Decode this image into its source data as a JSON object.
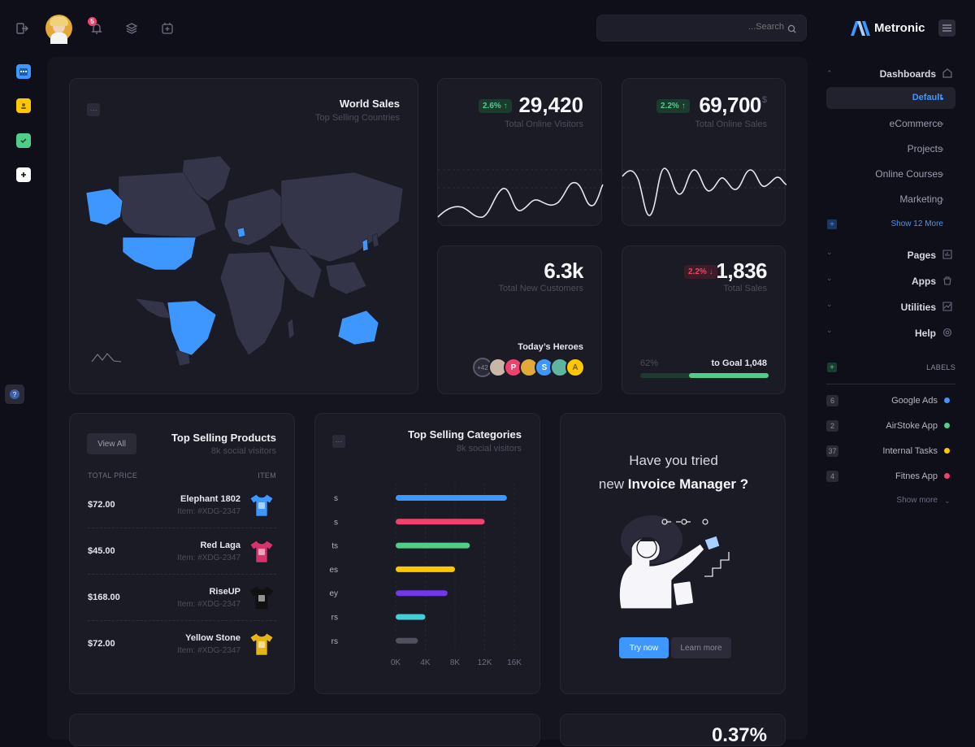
{
  "header": {
    "notification_count": "5",
    "search_placeholder": "...Search",
    "brand": "Metronic"
  },
  "world_sales": {
    "title": "World Sales",
    "subtitle": "Top Selling Countries",
    "menu_label": "···"
  },
  "stats": {
    "visitors": {
      "badge": "2.6%",
      "value": "29,420",
      "label": "Total Online Visitors"
    },
    "online_sales": {
      "badge": "2.2%",
      "value": "69,700",
      "currency": "$",
      "label": "Total Online Sales"
    },
    "customers": {
      "value": "6.3k",
      "label": "Total New Customers",
      "heroes_title": "Today’s Heroes",
      "heroes": [
        "+42",
        "",
        "P",
        "",
        "S",
        "",
        "A"
      ]
    },
    "total_sales": {
      "badge": "2.2%",
      "value": "1,836",
      "label": "Total Sales",
      "progress_label": "62%",
      "goal_label": "to Goal 1,048",
      "progress": 62
    }
  },
  "top_products": {
    "title": "Top Selling Products",
    "subtitle": "8k social visitors",
    "view_all": "View All",
    "col_price": "TOTAL PRICE",
    "col_item": "ITEM",
    "rows": [
      {
        "price": "$72.00",
        "name": "Elephant 1802",
        "item": "Item: #XDG-2347",
        "color": "#3e97ff"
      },
      {
        "price": "$45.00",
        "name": "Red Laga",
        "item": "Item: #XDG-2347",
        "color": "#d6336c"
      },
      {
        "price": "$168.00",
        "name": "RiseUP",
        "item": "Item: #XDG-2347",
        "color": "#111111"
      },
      {
        "price": "$72.00",
        "name": "Yellow Stone",
        "item": "Item: #XDG-2347",
        "color": "#e5b415"
      }
    ]
  },
  "top_categories": {
    "title": "Top Selling Categories",
    "subtitle": "8k social visitors",
    "menu_label": "···"
  },
  "chart_data": {
    "type": "bar",
    "orientation": "horizontal",
    "title": "Top Selling Categories",
    "subtitle": "8k social visitors",
    "categories": [
      "s",
      "s",
      "ts",
      "es",
      "ey",
      "rs",
      "rs"
    ],
    "values": [
      15000,
      12000,
      10000,
      8000,
      7000,
      4000,
      3000
    ],
    "colors": [
      "#3e97ff",
      "#f1416c",
      "#50cd89",
      "#ffc700",
      "#7239ea",
      "#43ced7",
      "#50505e"
    ],
    "xlim": [
      0,
      16000
    ],
    "xticks": [
      "0K",
      "4K",
      "8K",
      "12K",
      "16K"
    ]
  },
  "promo": {
    "line1": "Have you tried",
    "line2_prefix": "new ",
    "line2_bold": "Invoice Manager ?",
    "try_now": "Try now",
    "learn_more": "Learn more"
  },
  "bottom_peek": "0.37%",
  "nav": {
    "dashboards": "Dashboards",
    "items": [
      "Default",
      "eCommerce",
      "Projects",
      "Online Courses",
      "Marketing"
    ],
    "show_more": "Show 12 More",
    "sections": [
      "Pages",
      "Apps",
      "Utilities",
      "Help"
    ],
    "labels_title": "LABELS",
    "labels": [
      {
        "count": "6",
        "name": "Google Ads",
        "color": "#3e97ff"
      },
      {
        "count": "2",
        "name": "AirStoke App",
        "color": "#50cd89"
      },
      {
        "count": "37",
        "name": "Internal Tasks",
        "color": "#ffc700"
      },
      {
        "count": "4",
        "name": "Fitnes App",
        "color": "#f1416c"
      }
    ],
    "show_more_labels": "Show more"
  }
}
